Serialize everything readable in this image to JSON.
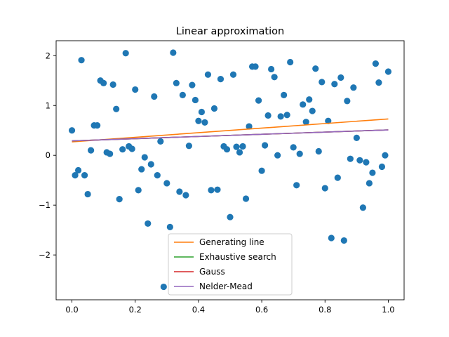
{
  "chart_data": {
    "type": "scatter",
    "title": "Linear approximation",
    "xlabel": "",
    "ylabel": "",
    "xlim": [
      -0.05,
      1.05
    ],
    "ylim": [
      -2.9,
      2.3
    ],
    "xticks": [
      0.0,
      0.2,
      0.4,
      0.6,
      0.8,
      1.0
    ],
    "xtick_labels": [
      "0.0",
      "0.2",
      "0.4",
      "0.6",
      "0.8",
      "1.0"
    ],
    "yticks": [
      -2,
      -1,
      0,
      1,
      2
    ],
    "ytick_labels": [
      "−2",
      "−1",
      "0",
      "1",
      "2"
    ],
    "grid": false,
    "legend_position": "bottom-center",
    "scatter": {
      "color": "#1f77b4",
      "points": [
        [
          0.0,
          0.5
        ],
        [
          0.01,
          -0.4
        ],
        [
          0.02,
          -0.3
        ],
        [
          0.03,
          1.91
        ],
        [
          0.04,
          -0.4
        ],
        [
          0.05,
          -0.78
        ],
        [
          0.06,
          0.1
        ],
        [
          0.07,
          0.6
        ],
        [
          0.08,
          0.6
        ],
        [
          0.09,
          1.5
        ],
        [
          0.1,
          1.45
        ],
        [
          0.11,
          0.06
        ],
        [
          0.12,
          0.03
        ],
        [
          0.13,
          1.42
        ],
        [
          0.14,
          0.93
        ],
        [
          0.15,
          -0.88
        ],
        [
          0.16,
          0.12
        ],
        [
          0.17,
          2.05
        ],
        [
          0.18,
          0.18
        ],
        [
          0.19,
          0.13
        ],
        [
          0.2,
          1.32
        ],
        [
          0.21,
          -0.7
        ],
        [
          0.22,
          -0.28
        ],
        [
          0.23,
          -0.04
        ],
        [
          0.24,
          -1.37
        ],
        [
          0.25,
          -0.18
        ],
        [
          0.26,
          1.18
        ],
        [
          0.27,
          -0.4
        ],
        [
          0.28,
          0.28
        ],
        [
          0.29,
          -2.64
        ],
        [
          0.3,
          -0.56
        ],
        [
          0.31,
          -1.44
        ],
        [
          0.32,
          2.06
        ],
        [
          0.33,
          1.45
        ],
        [
          0.34,
          -0.73
        ],
        [
          0.35,
          1.21
        ],
        [
          0.36,
          -0.8
        ],
        [
          0.37,
          0.19
        ],
        [
          0.38,
          1.41
        ],
        [
          0.39,
          1.11
        ],
        [
          0.4,
          0.69
        ],
        [
          0.41,
          0.87
        ],
        [
          0.42,
          0.66
        ],
        [
          0.43,
          1.62
        ],
        [
          0.44,
          -0.7
        ],
        [
          0.45,
          0.94
        ],
        [
          0.46,
          -0.69
        ],
        [
          0.47,
          1.53
        ],
        [
          0.48,
          0.18
        ],
        [
          0.49,
          0.12
        ],
        [
          0.5,
          -1.24
        ],
        [
          0.51,
          1.62
        ],
        [
          0.52,
          0.17
        ],
        [
          0.53,
          0.06
        ],
        [
          0.54,
          0.18
        ],
        [
          0.55,
          -0.87
        ],
        [
          0.56,
          0.58
        ],
        [
          0.57,
          1.78
        ],
        [
          0.58,
          1.78
        ],
        [
          0.59,
          1.1
        ],
        [
          0.6,
          -0.31
        ],
        [
          0.61,
          0.2
        ],
        [
          0.62,
          0.8
        ],
        [
          0.63,
          1.73
        ],
        [
          0.64,
          1.57
        ],
        [
          0.65,
          0.0
        ],
        [
          0.66,
          0.78
        ],
        [
          0.67,
          1.21
        ],
        [
          0.68,
          0.81
        ],
        [
          0.69,
          1.87
        ],
        [
          0.7,
          0.16
        ],
        [
          0.71,
          -0.6
        ],
        [
          0.72,
          0.03
        ],
        [
          0.73,
          1.02
        ],
        [
          0.74,
          0.67
        ],
        [
          0.75,
          1.12
        ],
        [
          0.76,
          0.89
        ],
        [
          0.77,
          1.74
        ],
        [
          0.78,
          0.08
        ],
        [
          0.79,
          1.47
        ],
        [
          0.8,
          -0.66
        ],
        [
          0.81,
          0.69
        ],
        [
          0.82,
          -1.66
        ],
        [
          0.83,
          1.43
        ],
        [
          0.84,
          -0.45
        ],
        [
          0.85,
          1.56
        ],
        [
          0.86,
          -1.71
        ],
        [
          0.87,
          1.09
        ],
        [
          0.88,
          -0.07
        ],
        [
          0.89,
          1.36
        ],
        [
          0.9,
          0.35
        ],
        [
          0.91,
          -0.1
        ],
        [
          0.92,
          -1.05
        ],
        [
          0.93,
          -0.14
        ],
        [
          0.94,
          -0.56
        ],
        [
          0.95,
          -0.35
        ],
        [
          0.96,
          1.84
        ],
        [
          0.97,
          1.46
        ],
        [
          0.98,
          -0.23
        ],
        [
          0.99,
          0.0
        ],
        [
          1.0,
          1.68
        ]
      ]
    },
    "series": [
      {
        "name": "Generating line",
        "color": "#ff7f0e",
        "x": [
          0.0,
          1.0
        ],
        "y": [
          0.27,
          0.73
        ]
      },
      {
        "name": "Exhaustive search",
        "color": "#2ca02c",
        "x": [
          0.0,
          1.0
        ],
        "y": [
          0.29,
          0.51
        ]
      },
      {
        "name": "Gauss",
        "color": "#d62728",
        "x": [
          0.0,
          1.0
        ],
        "y": [
          0.29,
          0.51
        ]
      },
      {
        "name": "Nelder-Mead",
        "color": "#9467bd",
        "x": [
          0.0,
          1.0
        ],
        "y": [
          0.29,
          0.51
        ]
      }
    ]
  }
}
